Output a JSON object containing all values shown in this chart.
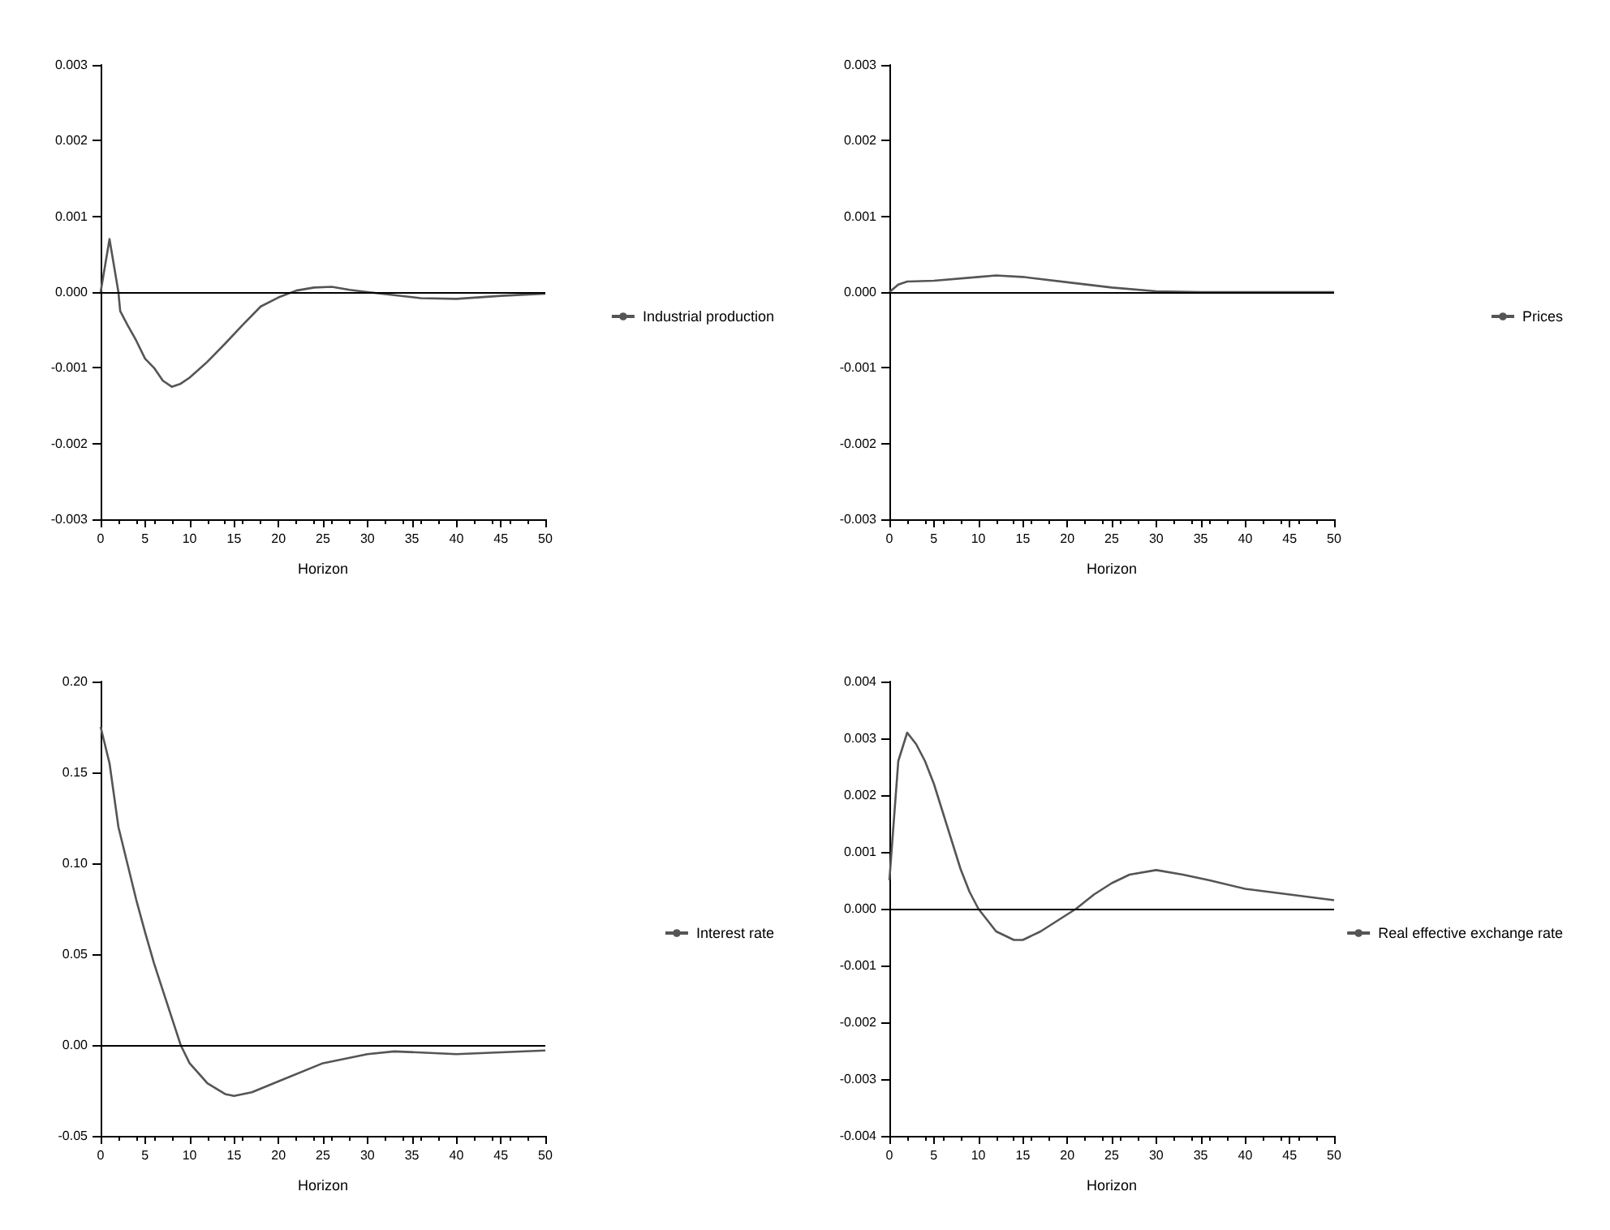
{
  "chart_data": [
    {
      "type": "line",
      "xlabel": "Horizon",
      "legend": "right",
      "grid": false,
      "marker": "none",
      "line_style": "solid",
      "xlim": [
        0,
        50
      ],
      "xticks": [
        0,
        5,
        10,
        15,
        20,
        25,
        30,
        35,
        40,
        45,
        50
      ],
      "ylim": [
        -0.003,
        0.003
      ],
      "yticks": [
        -0.003,
        -0.002,
        -0.001,
        {
          "value": 0,
          "label": "0.000"
        },
        0.001,
        0.002,
        0.003
      ],
      "ref_lines": [
        {
          "axis": "y",
          "value": 0,
          "color": "#000000"
        }
      ],
      "series": [
        {
          "name": "Industrial production",
          "color": "#555555",
          "x": [
            0,
            1,
            2,
            2.2,
            3,
            4,
            5,
            6,
            7,
            8,
            9,
            10,
            12,
            14,
            16,
            18,
            20,
            22,
            24,
            26,
            28,
            30,
            33,
            36,
            40,
            45,
            50
          ],
          "values": [
            0,
            0.0007,
            0,
            -0.00025,
            -0.00043,
            -0.00064,
            -0.00088,
            -0.001,
            -0.00117,
            -0.00125,
            -0.00121,
            -0.00113,
            -0.00092,
            -0.00068,
            -0.00043,
            -0.00019,
            -7e-05,
            2e-05,
            6e-05,
            7e-05,
            3e-05,
            0,
            -4e-05,
            -8e-05,
            -9e-05,
            -5e-05,
            -2e-05
          ]
        }
      ]
    },
    {
      "type": "line",
      "xlabel": "Horizon",
      "legend": "right",
      "grid": false,
      "marker": "none",
      "line_style": "solid",
      "xlim": [
        0,
        50
      ],
      "xticks": [
        0,
        5,
        10,
        15,
        20,
        25,
        30,
        35,
        40,
        45,
        50
      ],
      "ylim": [
        -0.003,
        0.003
      ],
      "yticks": [
        -0.003,
        -0.002,
        -0.001,
        {
          "value": 0,
          "label": "0.000"
        },
        0.001,
        0.002,
        0.003
      ],
      "ref_lines": [
        {
          "axis": "y",
          "value": 0,
          "color": "#000000"
        }
      ],
      "series": [
        {
          "name": "Prices",
          "color": "#555555",
          "x": [
            0,
            1,
            2,
            5,
            10,
            12,
            15,
            20,
            25,
            30,
            35,
            40,
            45,
            50
          ],
          "values": [
            0,
            0.0001,
            0.00014,
            0.00015,
            0.0002,
            0.00022,
            0.0002,
            0.00013,
            6e-05,
            1e-05,
            0,
            0,
            0,
            0
          ]
        }
      ]
    },
    {
      "type": "line",
      "xlabel": "Horizon",
      "legend": "right",
      "grid": false,
      "marker": "none",
      "line_style": "solid",
      "xlim": [
        0,
        50
      ],
      "xticks": [
        0,
        5,
        10,
        15,
        20,
        25,
        30,
        35,
        40,
        45,
        50
      ],
      "ylim": [
        -0.05,
        0.2
      ],
      "yticks": [
        -0.05,
        {
          "value": 0,
          "label": "0.00"
        },
        0.05,
        {
          "value": 0.1,
          "label": "0.10"
        },
        0.15,
        {
          "value": 0.2,
          "label": "0.20"
        }
      ],
      "ref_lines": [
        {
          "axis": "y",
          "value": 0,
          "color": "#000000"
        }
      ],
      "series": [
        {
          "name": "Interest rate",
          "color": "#555555",
          "x": [
            0,
            1,
            2,
            3,
            4,
            5,
            6,
            7,
            8,
            9,
            10,
            12,
            14,
            15,
            17,
            20,
            25,
            30,
            33,
            40,
            45,
            50
          ],
          "values": [
            0.175,
            0.155,
            0.12,
            0.1,
            0.08,
            0.062,
            0.045,
            0.03,
            0.015,
            0,
            -0.01,
            -0.021,
            -0.027,
            -0.028,
            -0.026,
            -0.02,
            -0.01,
            -0.005,
            -0.0035,
            -0.005,
            -0.004,
            -0.003
          ]
        }
      ]
    },
    {
      "type": "line",
      "xlabel": "Horizon",
      "legend": "right",
      "grid": false,
      "marker": "none",
      "line_style": "solid",
      "xlim": [
        0,
        50
      ],
      "xticks": [
        0,
        5,
        10,
        15,
        20,
        25,
        30,
        35,
        40,
        45,
        50
      ],
      "ylim": [
        -0.004,
        0.004
      ],
      "yticks": [
        -0.004,
        -0.003,
        -0.002,
        -0.001,
        {
          "value": 0,
          "label": "0.000"
        },
        0.001,
        0.002,
        0.003,
        0.004
      ],
      "ref_lines": [
        {
          "axis": "y",
          "value": 0,
          "color": "#000000"
        }
      ],
      "series": [
        {
          "name": "Real effective exchange rate",
          "color": "#555555",
          "x": [
            0,
            1,
            2,
            3,
            4,
            5,
            6,
            7,
            8,
            9,
            10,
            11,
            12,
            14,
            15,
            17,
            19,
            21,
            23,
            25,
            27,
            30,
            33,
            36,
            40,
            45,
            50
          ],
          "values": [
            0.0005,
            0.0026,
            0.0031,
            0.0029,
            0.0026,
            0.0022,
            0.0017,
            0.0012,
            0.0007,
            0.0003,
            0,
            -0.0002,
            -0.0004,
            -0.00055,
            -0.00055,
            -0.0004,
            -0.0002,
            0,
            0.00025,
            0.00045,
            0.0006,
            0.00068,
            0.0006,
            0.0005,
            0.00035,
            0.00025,
            0.00015
          ]
        }
      ]
    }
  ]
}
